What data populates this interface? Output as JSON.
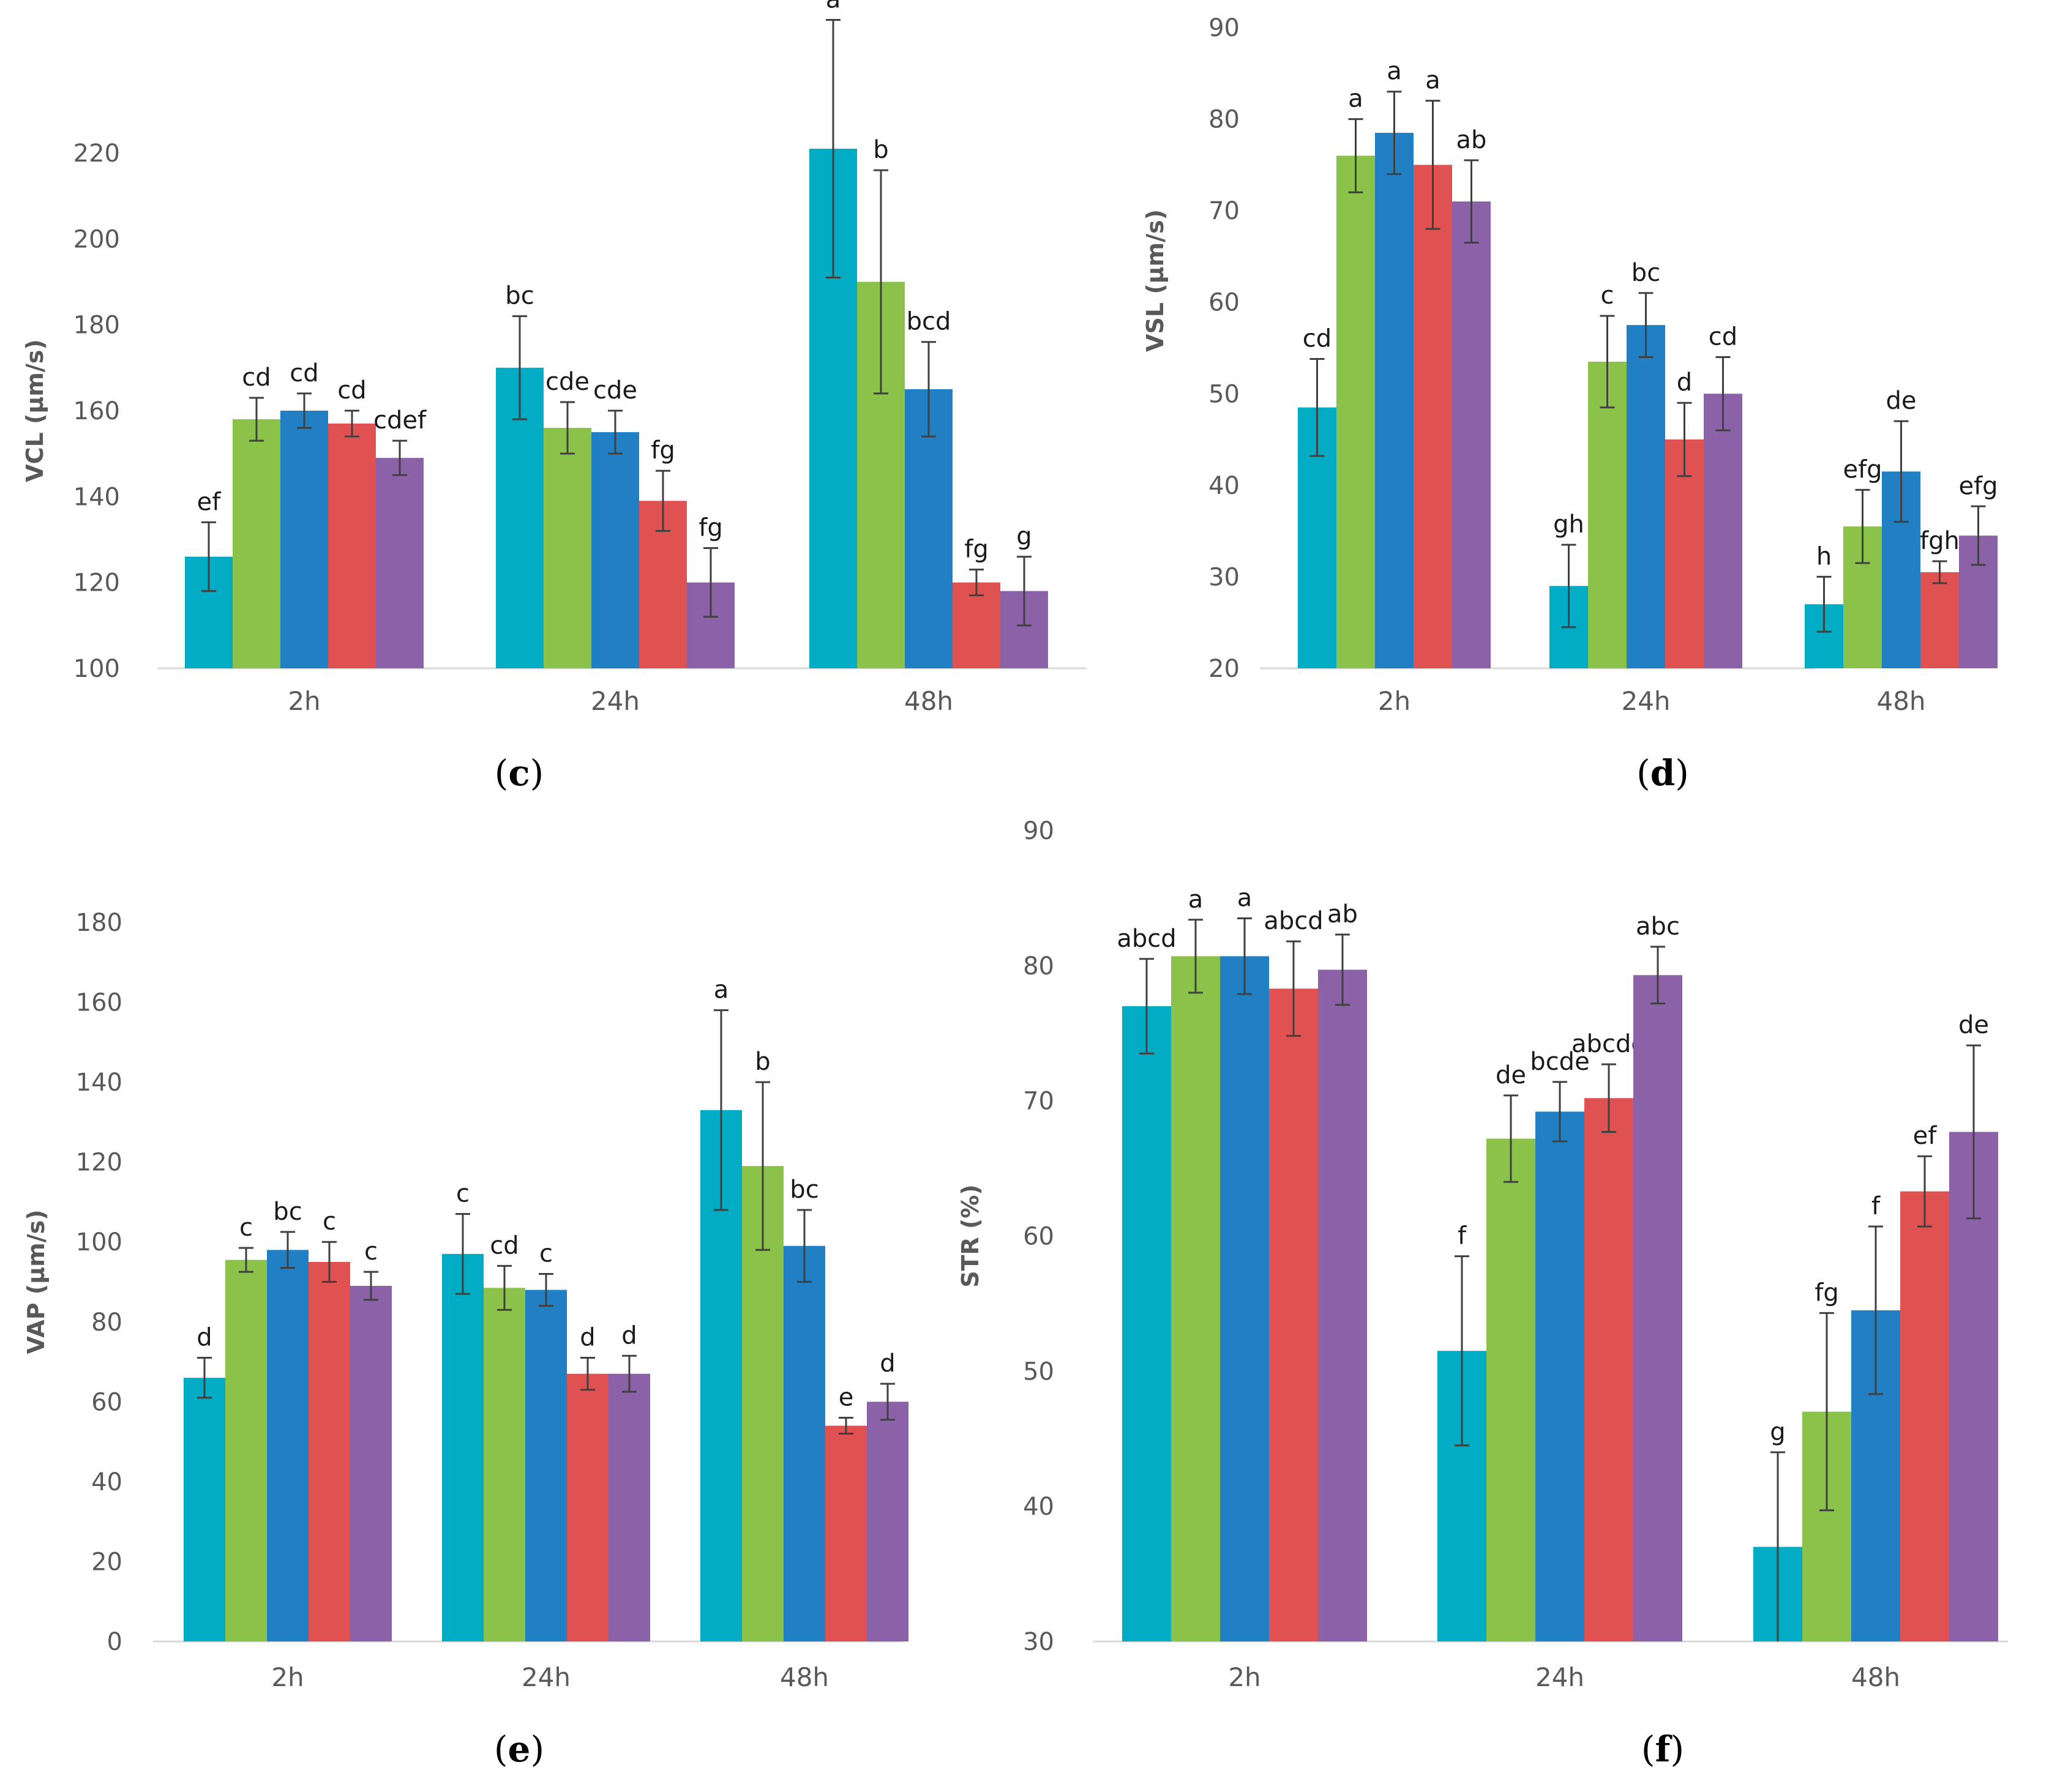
{
  "colors": [
    "#00acc4",
    "#8bc24a",
    "#2180c3",
    "#e05252",
    "#8b62a8"
  ],
  "chart_data": [
    {
      "id": "c",
      "panel_label": "c",
      "type": "bar",
      "ylabel": "VCL (μm/s)",
      "ylim": [
        100,
        220
      ],
      "yticks": [
        100,
        120,
        140,
        160,
        180,
        200,
        220
      ],
      "categories": [
        "2h",
        "24h",
        "48h"
      ],
      "series": [
        {
          "values": [
            126,
            170,
            221
          ],
          "errors": [
            8,
            12,
            30
          ],
          "sig": [
            "ef",
            "bc",
            "a"
          ]
        },
        {
          "values": [
            158,
            156,
            190
          ],
          "errors": [
            5,
            6,
            26
          ],
          "sig": [
            "cd",
            "cde",
            "b"
          ]
        },
        {
          "values": [
            160,
            155,
            165
          ],
          "errors": [
            4,
            5,
            11
          ],
          "sig": [
            "cd",
            "cde",
            "bcd"
          ]
        },
        {
          "values": [
            157,
            139,
            120
          ],
          "errors": [
            3,
            7,
            3
          ],
          "sig": [
            "cd",
            "fg",
            "fg"
          ]
        },
        {
          "values": [
            149,
            120,
            118
          ],
          "errors": [
            4,
            8,
            8
          ],
          "sig": [
            "cdef",
            "fg",
            "g"
          ]
        }
      ]
    },
    {
      "id": "d",
      "panel_label": "d",
      "type": "bar",
      "ylabel": "VSL (μm/s)",
      "ylim": [
        20,
        90
      ],
      "yticks": [
        20,
        30,
        40,
        50,
        60,
        70,
        80,
        90
      ],
      "categories": [
        "2h",
        "24h",
        "48h"
      ],
      "series": [
        {
          "values": [
            48.5,
            29,
            27
          ],
          "errors": [
            5.3,
            4.5,
            3
          ],
          "sig": [
            "cd",
            "gh",
            "h"
          ]
        },
        {
          "values": [
            76,
            53.5,
            35.5
          ],
          "errors": [
            4,
            5,
            4
          ],
          "sig": [
            "a",
            "c",
            "efg"
          ]
        },
        {
          "values": [
            78.5,
            57.5,
            41.5
          ],
          "errors": [
            4.5,
            3.5,
            5.5
          ],
          "sig": [
            "a",
            "bc",
            "de"
          ]
        },
        {
          "values": [
            75,
            45,
            30.5
          ],
          "errors": [
            7,
            4,
            1.2
          ],
          "sig": [
            "a",
            "d",
            "fgh"
          ]
        },
        {
          "values": [
            71,
            50,
            34.5
          ],
          "errors": [
            4.5,
            4,
            3.2
          ],
          "sig": [
            "ab",
            "cd",
            "efg"
          ]
        }
      ]
    },
    {
      "id": "e",
      "panel_label": "e",
      "type": "bar",
      "ylabel": "VAP (μm/s)",
      "ylim": [
        0,
        180
      ],
      "yticks": [
        0,
        20,
        40,
        60,
        80,
        100,
        120,
        140,
        160,
        180
      ],
      "categories": [
        "2h",
        "24h",
        "48h"
      ],
      "series": [
        {
          "values": [
            66,
            97,
            133
          ],
          "errors": [
            5,
            10,
            25
          ],
          "sig": [
            "d",
            "c",
            "a"
          ]
        },
        {
          "values": [
            95.5,
            88.5,
            119
          ],
          "errors": [
            3,
            5.5,
            21
          ],
          "sig": [
            "c",
            "cd",
            "b"
          ]
        },
        {
          "values": [
            98,
            88,
            99
          ],
          "errors": [
            4.5,
            4,
            9
          ],
          "sig": [
            "bc",
            "c",
            "bc"
          ]
        },
        {
          "values": [
            95,
            67,
            54
          ],
          "errors": [
            5,
            4,
            2
          ],
          "sig": [
            "c",
            "d",
            "e"
          ]
        },
        {
          "values": [
            89,
            67,
            60
          ],
          "errors": [
            3.5,
            4.5,
            4.5
          ],
          "sig": [
            "c",
            "d",
            "d"
          ]
        }
      ]
    },
    {
      "id": "f",
      "panel_label": "f",
      "type": "bar",
      "ylabel": "STR (%)",
      "ylim": [
        30,
        90
      ],
      "yticks": [
        30,
        40,
        50,
        60,
        70,
        80,
        90
      ],
      "categories": [
        "2h",
        "24h",
        "48h"
      ],
      "series": [
        {
          "values": [
            77,
            51.5,
            37
          ],
          "errors": [
            3.5,
            7,
            7
          ],
          "sig": [
            "abcd",
            "f",
            "g"
          ]
        },
        {
          "values": [
            80.7,
            67.2,
            47
          ],
          "errors": [
            2.7,
            3.2,
            7.3
          ],
          "sig": [
            "a",
            "de",
            "fg"
          ]
        },
        {
          "values": [
            80.7,
            69.2,
            54.5
          ],
          "errors": [
            2.8,
            2.2,
            6.2
          ],
          "sig": [
            "a",
            "bcde",
            "f"
          ]
        },
        {
          "values": [
            78.3,
            70.2,
            63.3
          ],
          "errors": [
            3.5,
            2.5,
            2.6
          ],
          "sig": [
            "abcd",
            "abcde",
            "ef"
          ]
        },
        {
          "values": [
            79.7,
            79.3,
            67.7
          ],
          "errors": [
            2.6,
            2.1,
            6.4
          ],
          "sig": [
            "ab",
            "abc",
            "de"
          ]
        }
      ]
    }
  ]
}
